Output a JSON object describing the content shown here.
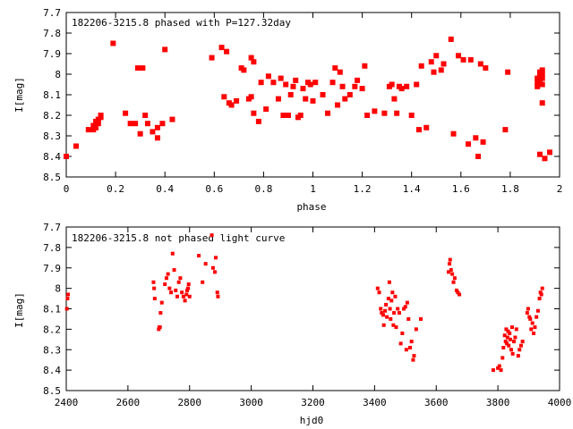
{
  "chart_data": [
    {
      "type": "scatter",
      "title": "182206-3215.8 phased with P=127.32day",
      "xlabel": "phase",
      "ylabel": "I[mag]",
      "xlim": [
        0,
        2
      ],
      "ylim": [
        8.5,
        7.7
      ],
      "y_inverted": true,
      "grid": false,
      "legend": "none",
      "marker_color": "#ff0000",
      "x_ticks": [
        "0",
        "0.2",
        "0.4",
        "0.6",
        "0.8",
        "1",
        "1.2",
        "1.4",
        "1.6",
        "1.8",
        "2"
      ],
      "y_ticks": [
        "7.7",
        "7.8",
        "7.9",
        "8",
        "8.1",
        "8.2",
        "8.3",
        "8.4",
        "8.5"
      ],
      "points": [
        [
          0.0,
          8.4
        ],
        [
          0.04,
          8.35
        ],
        [
          0.09,
          8.27
        ],
        [
          0.11,
          8.27
        ],
        [
          0.11,
          8.25
        ],
        [
          0.12,
          8.26
        ],
        [
          0.12,
          8.23
        ],
        [
          0.13,
          8.24
        ],
        [
          0.13,
          8.22
        ],
        [
          0.14,
          8.21
        ],
        [
          0.14,
          8.2
        ],
        [
          0.19,
          7.85
        ],
        [
          0.24,
          8.19
        ],
        [
          0.26,
          8.24
        ],
        [
          0.28,
          8.24
        ],
        [
          0.29,
          7.97
        ],
        [
          0.31,
          7.97
        ],
        [
          0.3,
          8.29
        ],
        [
          0.32,
          8.2
        ],
        [
          0.33,
          8.24
        ],
        [
          0.35,
          8.28
        ],
        [
          0.37,
          8.26
        ],
        [
          0.37,
          8.31
        ],
        [
          0.39,
          8.24
        ],
        [
          0.4,
          7.88
        ],
        [
          0.43,
          8.22
        ],
        [
          0.59,
          7.92
        ],
        [
          0.63,
          7.87
        ],
        [
          0.64,
          8.11
        ],
        [
          0.65,
          7.89
        ],
        [
          0.66,
          8.14
        ],
        [
          0.67,
          8.15
        ],
        [
          0.69,
          8.13
        ],
        [
          0.71,
          7.97
        ],
        [
          0.72,
          7.98
        ],
        [
          0.74,
          8.12
        ],
        [
          0.75,
          8.11
        ],
        [
          0.75,
          7.92
        ],
        [
          0.76,
          7.94
        ],
        [
          0.76,
          8.19
        ],
        [
          0.78,
          8.23
        ],
        [
          0.79,
          8.04
        ],
        [
          0.81,
          8.17
        ],
        [
          0.82,
          8.01
        ],
        [
          0.84,
          8.04
        ],
        [
          0.86,
          8.12
        ],
        [
          0.87,
          8.02
        ],
        [
          0.88,
          8.2
        ],
        [
          0.89,
          8.05
        ],
        [
          0.9,
          8.2
        ],
        [
          0.91,
          8.1
        ],
        [
          0.92,
          8.06
        ],
        [
          0.93,
          8.03
        ],
        [
          0.94,
          8.21
        ],
        [
          0.95,
          8.2
        ],
        [
          0.96,
          8.07
        ],
        [
          0.97,
          8.12
        ],
        [
          0.98,
          8.04
        ],
        [
          0.99,
          8.05
        ],
        [
          1.0,
          8.13
        ],
        [
          1.01,
          8.04
        ],
        [
          1.04,
          8.1
        ],
        [
          1.06,
          8.19
        ],
        [
          1.08,
          8.04
        ],
        [
          1.09,
          7.97
        ],
        [
          1.1,
          8.15
        ],
        [
          1.11,
          7.99
        ],
        [
          1.12,
          8.06
        ],
        [
          1.13,
          8.12
        ],
        [
          1.15,
          8.1
        ],
        [
          1.17,
          8.06
        ],
        [
          1.18,
          8.03
        ],
        [
          1.2,
          8.07
        ],
        [
          1.21,
          7.96
        ],
        [
          1.22,
          8.2
        ],
        [
          1.25,
          8.18
        ],
        [
          1.29,
          8.19
        ],
        [
          1.31,
          8.06
        ],
        [
          1.32,
          8.05
        ],
        [
          1.33,
          8.12
        ],
        [
          1.34,
          8.19
        ],
        [
          1.35,
          8.06
        ],
        [
          1.36,
          8.07
        ],
        [
          1.38,
          8.06
        ],
        [
          1.4,
          8.2
        ],
        [
          1.42,
          8.05
        ],
        [
          1.43,
          8.27
        ],
        [
          1.44,
          7.96
        ],
        [
          1.46,
          8.26
        ],
        [
          1.48,
          7.94
        ],
        [
          1.49,
          7.99
        ],
        [
          1.5,
          7.91
        ],
        [
          1.52,
          7.98
        ],
        [
          1.53,
          7.95
        ],
        [
          1.56,
          7.83
        ],
        [
          1.57,
          8.29
        ],
        [
          1.59,
          7.91
        ],
        [
          1.61,
          7.93
        ],
        [
          1.63,
          8.34
        ],
        [
          1.64,
          7.93
        ],
        [
          1.66,
          8.31
        ],
        [
          1.67,
          8.4
        ],
        [
          1.68,
          7.95
        ],
        [
          1.69,
          8.33
        ],
        [
          1.7,
          7.97
        ],
        [
          1.78,
          8.27
        ],
        [
          1.79,
          7.99
        ],
        [
          1.91,
          8.02
        ],
        [
          1.91,
          8.04
        ],
        [
          1.91,
          8.06
        ],
        [
          1.92,
          7.99
        ],
        [
          1.92,
          8.01
        ],
        [
          1.92,
          8.03
        ],
        [
          1.92,
          8.05
        ],
        [
          1.93,
          7.98
        ],
        [
          1.93,
          8.0
        ],
        [
          1.93,
          8.02
        ],
        [
          1.93,
          8.05
        ],
        [
          1.92,
          8.39
        ],
        [
          1.93,
          8.14
        ],
        [
          1.94,
          8.41
        ],
        [
          1.96,
          8.38
        ]
      ]
    },
    {
      "type": "scatter",
      "title": "182206-3215.8 not phased light curve",
      "xlabel": "hjd0",
      "ylabel": "I[mag]",
      "xlim": [
        2400,
        4000
      ],
      "ylim": [
        8.5,
        7.7
      ],
      "y_inverted": true,
      "grid": false,
      "legend": "none",
      "marker_color": "#ff0000",
      "x_ticks": [
        "2400",
        "2600",
        "2800",
        "3000",
        "3200",
        "3400",
        "3600",
        "3800",
        "4000"
      ],
      "y_ticks": [
        "7.7",
        "7.8",
        "7.9",
        "8",
        "8.1",
        "8.2",
        "8.3",
        "8.4",
        "8.5"
      ],
      "points": [
        [
          2402,
          8.1
        ],
        [
          2404,
          8.05
        ],
        [
          2406,
          8.03
        ],
        [
          2683,
          7.97
        ],
        [
          2685,
          8.0
        ],
        [
          2687,
          8.05
        ],
        [
          2700,
          8.2
        ],
        [
          2702,
          8.19
        ],
        [
          2704,
          8.19
        ],
        [
          2706,
          8.12
        ],
        [
          2710,
          8.07
        ],
        [
          2720,
          7.98
        ],
        [
          2725,
          7.95
        ],
        [
          2730,
          7.93
        ],
        [
          2735,
          8.0
        ],
        [
          2740,
          8.02
        ],
        [
          2745,
          7.83
        ],
        [
          2750,
          7.91
        ],
        [
          2755,
          8.01
        ],
        [
          2760,
          8.04
        ],
        [
          2765,
          7.97
        ],
        [
          2770,
          7.95
        ],
        [
          2775,
          8.02
        ],
        [
          2780,
          8.04
        ],
        [
          2785,
          8.06
        ],
        [
          2790,
          8.03
        ],
        [
          2792,
          8.01
        ],
        [
          2795,
          8.0
        ],
        [
          2797,
          7.98
        ],
        [
          2800,
          8.04
        ],
        [
          2830,
          7.84
        ],
        [
          2842,
          7.97
        ],
        [
          2852,
          7.88
        ],
        [
          2872,
          7.74
        ],
        [
          2876,
          7.9
        ],
        [
          2882,
          7.92
        ],
        [
          2885,
          7.85
        ],
        [
          2890,
          8.02
        ],
        [
          2892,
          8.04
        ],
        [
          3410,
          8.0
        ],
        [
          3415,
          8.02
        ],
        [
          3420,
          8.1
        ],
        [
          3423,
          8.12
        ],
        [
          3428,
          8.13
        ],
        [
          3430,
          8.18
        ],
        [
          3434,
          8.11
        ],
        [
          3437,
          8.08
        ],
        [
          3440,
          8.14
        ],
        [
          3445,
          8.05
        ],
        [
          3448,
          7.97
        ],
        [
          3450,
          8.1
        ],
        [
          3452,
          8.15
        ],
        [
          3455,
          8.06
        ],
        [
          3458,
          8.02
        ],
        [
          3461,
          8.18
        ],
        [
          3463,
          8.12
        ],
        [
          3467,
          8.04
        ],
        [
          3470,
          8.19
        ],
        [
          3475,
          8.1
        ],
        [
          3480,
          8.12
        ],
        [
          3485,
          8.27
        ],
        [
          3490,
          8.22
        ],
        [
          3495,
          8.1
        ],
        [
          3500,
          8.09
        ],
        [
          3503,
          8.3
        ],
        [
          3506,
          8.07
        ],
        [
          3510,
          8.15
        ],
        [
          3515,
          8.29
        ],
        [
          3520,
          8.26
        ],
        [
          3525,
          8.35
        ],
        [
          3528,
          8.33
        ],
        [
          3535,
          8.2
        ],
        [
          3550,
          8.15
        ],
        [
          3640,
          7.92
        ],
        [
          3643,
          7.88
        ],
        [
          3645,
          7.86
        ],
        [
          3648,
          7.91
        ],
        [
          3652,
          7.93
        ],
        [
          3656,
          7.97
        ],
        [
          3660,
          7.95
        ],
        [
          3666,
          8.01
        ],
        [
          3670,
          8.02
        ],
        [
          3675,
          8.03
        ],
        [
          3785,
          8.4
        ],
        [
          3800,
          8.39
        ],
        [
          3805,
          8.38
        ],
        [
          3810,
          8.4
        ],
        [
          3815,
          8.34
        ],
        [
          3818,
          8.29
        ],
        [
          3822,
          8.23
        ],
        [
          3825,
          8.26
        ],
        [
          3827,
          8.2
        ],
        [
          3829,
          8.27
        ],
        [
          3831,
          8.24
        ],
        [
          3833,
          8.21
        ],
        [
          3835,
          8.28
        ],
        [
          3838,
          8.22
        ],
        [
          3840,
          8.25
        ],
        [
          3843,
          8.3
        ],
        [
          3846,
          8.19
        ],
        [
          3848,
          8.32
        ],
        [
          3852,
          8.26
        ],
        [
          3856,
          8.24
        ],
        [
          3860,
          8.2
        ],
        [
          3866,
          8.33
        ],
        [
          3870,
          8.3
        ],
        [
          3875,
          8.28
        ],
        [
          3880,
          8.26
        ],
        [
          3895,
          8.12
        ],
        [
          3898,
          8.1
        ],
        [
          3902,
          8.14
        ],
        [
          3905,
          8.15
        ],
        [
          3908,
          8.2
        ],
        [
          3912,
          8.17
        ],
        [
          3916,
          8.22
        ],
        [
          3920,
          8.19
        ],
        [
          3925,
          8.14
        ],
        [
          3930,
          8.11
        ],
        [
          3935,
          8.05
        ],
        [
          3938,
          8.02
        ],
        [
          3941,
          8.03
        ],
        [
          3944,
          8.0
        ]
      ]
    }
  ]
}
